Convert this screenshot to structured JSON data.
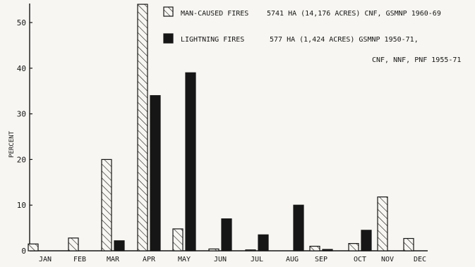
{
  "chart_data": {
    "type": "bar",
    "title": "",
    "xlabel": "",
    "ylabel": "PERCENT",
    "ylim": [
      0,
      55
    ],
    "yticks": [
      0,
      10,
      20,
      30,
      40,
      50
    ],
    "grid": false,
    "legend_position": "top-right",
    "categories": [
      "JAN",
      "FEB",
      "MAR",
      "APR",
      "MAY",
      "JUN",
      "JUL",
      "AUG",
      "SEP",
      "OCT",
      "NOV",
      "DEC"
    ],
    "series": [
      {
        "name": "MAN-CAUSED FIRES",
        "pattern": "hatched",
        "legend_lines": [
          "5741 HA (14,176 ACRES)  CNF, GSMNP 1960-69"
        ],
        "values": [
          1.5,
          2.8,
          20,
          54,
          4.8,
          0.4,
          0.2,
          0,
          1,
          1.6,
          11.8,
          2.7
        ]
      },
      {
        "name": "LIGHTNING FIRES",
        "pattern": "solid",
        "legend_lines": [
          "577 HA (1,424 ACRES) GSMNP 1950-71,",
          "CNF, NNF, PNF 1955-71"
        ],
        "values": [
          0,
          0,
          2.2,
          34,
          39,
          7,
          3.5,
          10,
          0.3,
          4.5,
          0,
          0
        ]
      }
    ],
    "colors": {
      "ink": "#161616",
      "paper": "#f7f6f2"
    }
  }
}
